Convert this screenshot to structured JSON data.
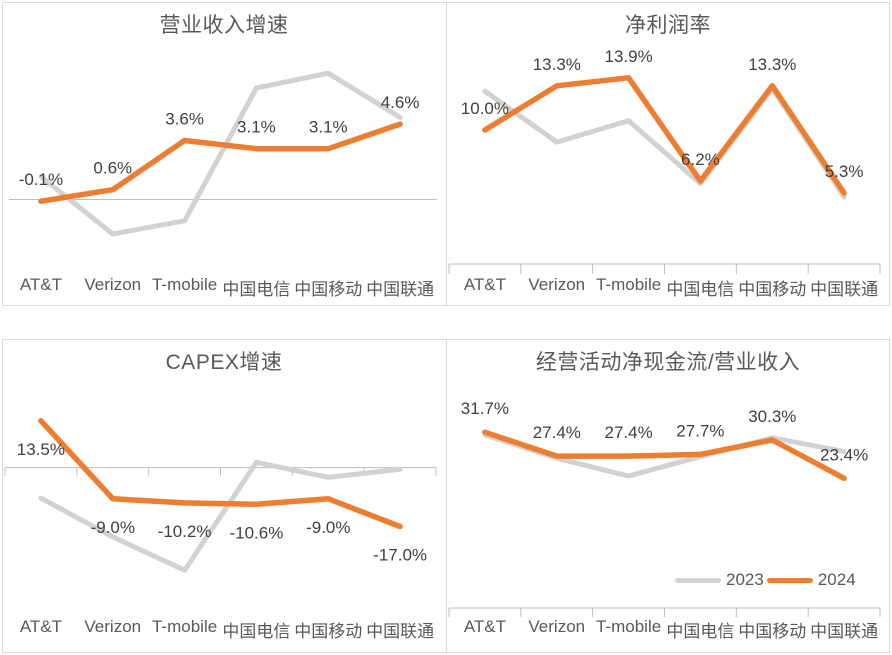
{
  "colors": {
    "series_2023": "#d2d2d2",
    "series_2024": "#ed7d31",
    "axis_line": "#bfbfbf",
    "data_label_text": "#404040",
    "muted_text": "#595959",
    "panel_border": "#d9d9d9",
    "background": "#ffffff"
  },
  "legend": {
    "items": [
      "2023",
      "2024"
    ]
  },
  "chart_data": [
    {
      "type": "line",
      "title": "营业收入增速",
      "categories": [
        "AT&T",
        "Verizon",
        "T-mobile",
        "中国电信",
        "中国移动",
        "中国联通"
      ],
      "series": [
        {
          "name": "2023",
          "color": "#d2d2d2",
          "values": [
            1.4,
            -2.1,
            -1.3,
            6.8,
            7.7,
            5.0
          ]
        },
        {
          "name": "2024",
          "color": "#ed7d31",
          "values": [
            -0.1,
            0.6,
            3.6,
            3.1,
            3.1,
            4.6
          ],
          "data_labels": [
            "-0.1%",
            "0.6%",
            "3.6%",
            "3.1%",
            "3.1%",
            "4.6%"
          ]
        }
      ],
      "ylim": [
        -3.2,
        9.3
      ],
      "grid": false,
      "axis_ticks": false,
      "data_label_position": "above",
      "legend_position": "none"
    },
    {
      "type": "line",
      "title": "净利润率",
      "categories": [
        "AT&T",
        "Verizon",
        "T-mobile",
        "中国电信",
        "中国移动",
        "中国联通"
      ],
      "series": [
        {
          "name": "2023",
          "color": "#d2d2d2",
          "values": [
            12.9,
            9.1,
            10.7,
            6.0,
            13.1,
            5.0
          ]
        },
        {
          "name": "2024",
          "color": "#ed7d31",
          "values": [
            10.0,
            13.3,
            13.9,
            6.2,
            13.3,
            5.3
          ],
          "data_labels": [
            "10.0%",
            "13.3%",
            "13.9%",
            "6.2%",
            "13.3%",
            "5.3%"
          ]
        }
      ],
      "ylim": [
        0,
        16.2
      ],
      "grid": false,
      "axis_ticks": true,
      "data_label_position": "above",
      "legend_position": "none"
    },
    {
      "type": "line",
      "title": "CAPEX增速",
      "categories": [
        "AT&T",
        "Verizon",
        "T-mobile",
        "中国电信",
        "中国移动",
        "中国联通"
      ],
      "series": [
        {
          "name": "2023",
          "color": "#d2d2d2",
          "values": [
            -8.8,
            -20.0,
            -29.6,
            1.5,
            -2.8,
            -0.5
          ]
        },
        {
          "name": "2024",
          "color": "#ed7d31",
          "values": [
            13.5,
            -9.0,
            -10.2,
            -10.6,
            -9.0,
            -17.0
          ],
          "data_labels": [
            "13.5%",
            "-9.0%",
            "-10.2%",
            "-10.6%",
            "-9.0%",
            "-17.0%"
          ]
        }
      ],
      "ylim": [
        -40.5,
        24.1
      ],
      "grid": false,
      "axis_ticks": true,
      "data_label_position": "below",
      "legend_position": "none"
    },
    {
      "type": "line",
      "title": "经营活动净现金流/营业收入",
      "categories": [
        "AT&T",
        "Verizon",
        "T-mobile",
        "中国电信",
        "中国移动",
        "中国联通"
      ],
      "series": [
        {
          "name": "2023",
          "color": "#d2d2d2",
          "values": [
            31.2,
            27.0,
            23.8,
            27.3,
            30.7,
            28.2
          ]
        },
        {
          "name": "2024",
          "color": "#ed7d31",
          "values": [
            31.7,
            27.4,
            27.4,
            27.7,
            30.3,
            23.4
          ],
          "data_labels": [
            "31.7%",
            "27.4%",
            "27.4%",
            "27.7%",
            "30.3%",
            "23.4%"
          ]
        }
      ],
      "ylim": [
        0,
        40.4
      ],
      "grid": false,
      "axis_ticks": true,
      "data_label_position": "above",
      "legend_position": "bottom-right"
    }
  ]
}
